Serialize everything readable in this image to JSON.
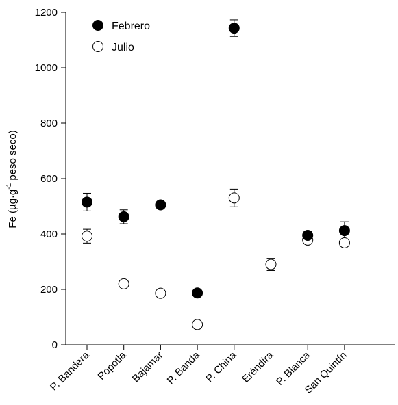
{
  "chart_data": {
    "type": "scatter",
    "categories": [
      "P. Bandera",
      "Popotla",
      "Bajamar",
      "P. Banda",
      "P. China",
      "Eréndira",
      "P. Blanca",
      "San Quintín"
    ],
    "ylabel": {
      "prefix": "Fe (µg·g",
      "superscript": "-1",
      "suffix": " peso seco)"
    },
    "ylim": [
      0,
      1200
    ],
    "yticks": [
      "0",
      "200",
      "400",
      "600",
      "800",
      "1000",
      "1200"
    ],
    "legend_position": "top-left",
    "series": [
      {
        "name": "Febrero",
        "marker": "filled-circle",
        "color": "#000000",
        "values": [
          515,
          462,
          505,
          187,
          1143,
          null,
          395,
          412
        ],
        "errors": [
          32,
          25,
          null,
          null,
          30,
          null,
          15,
          32
        ]
      },
      {
        "name": "Julio",
        "marker": "open-circle",
        "color": "#000000",
        "values": [
          392,
          220,
          186,
          73,
          530,
          290,
          378,
          368
        ],
        "errors": [
          25,
          null,
          null,
          null,
          32,
          22,
          null,
          null
        ]
      }
    ]
  }
}
